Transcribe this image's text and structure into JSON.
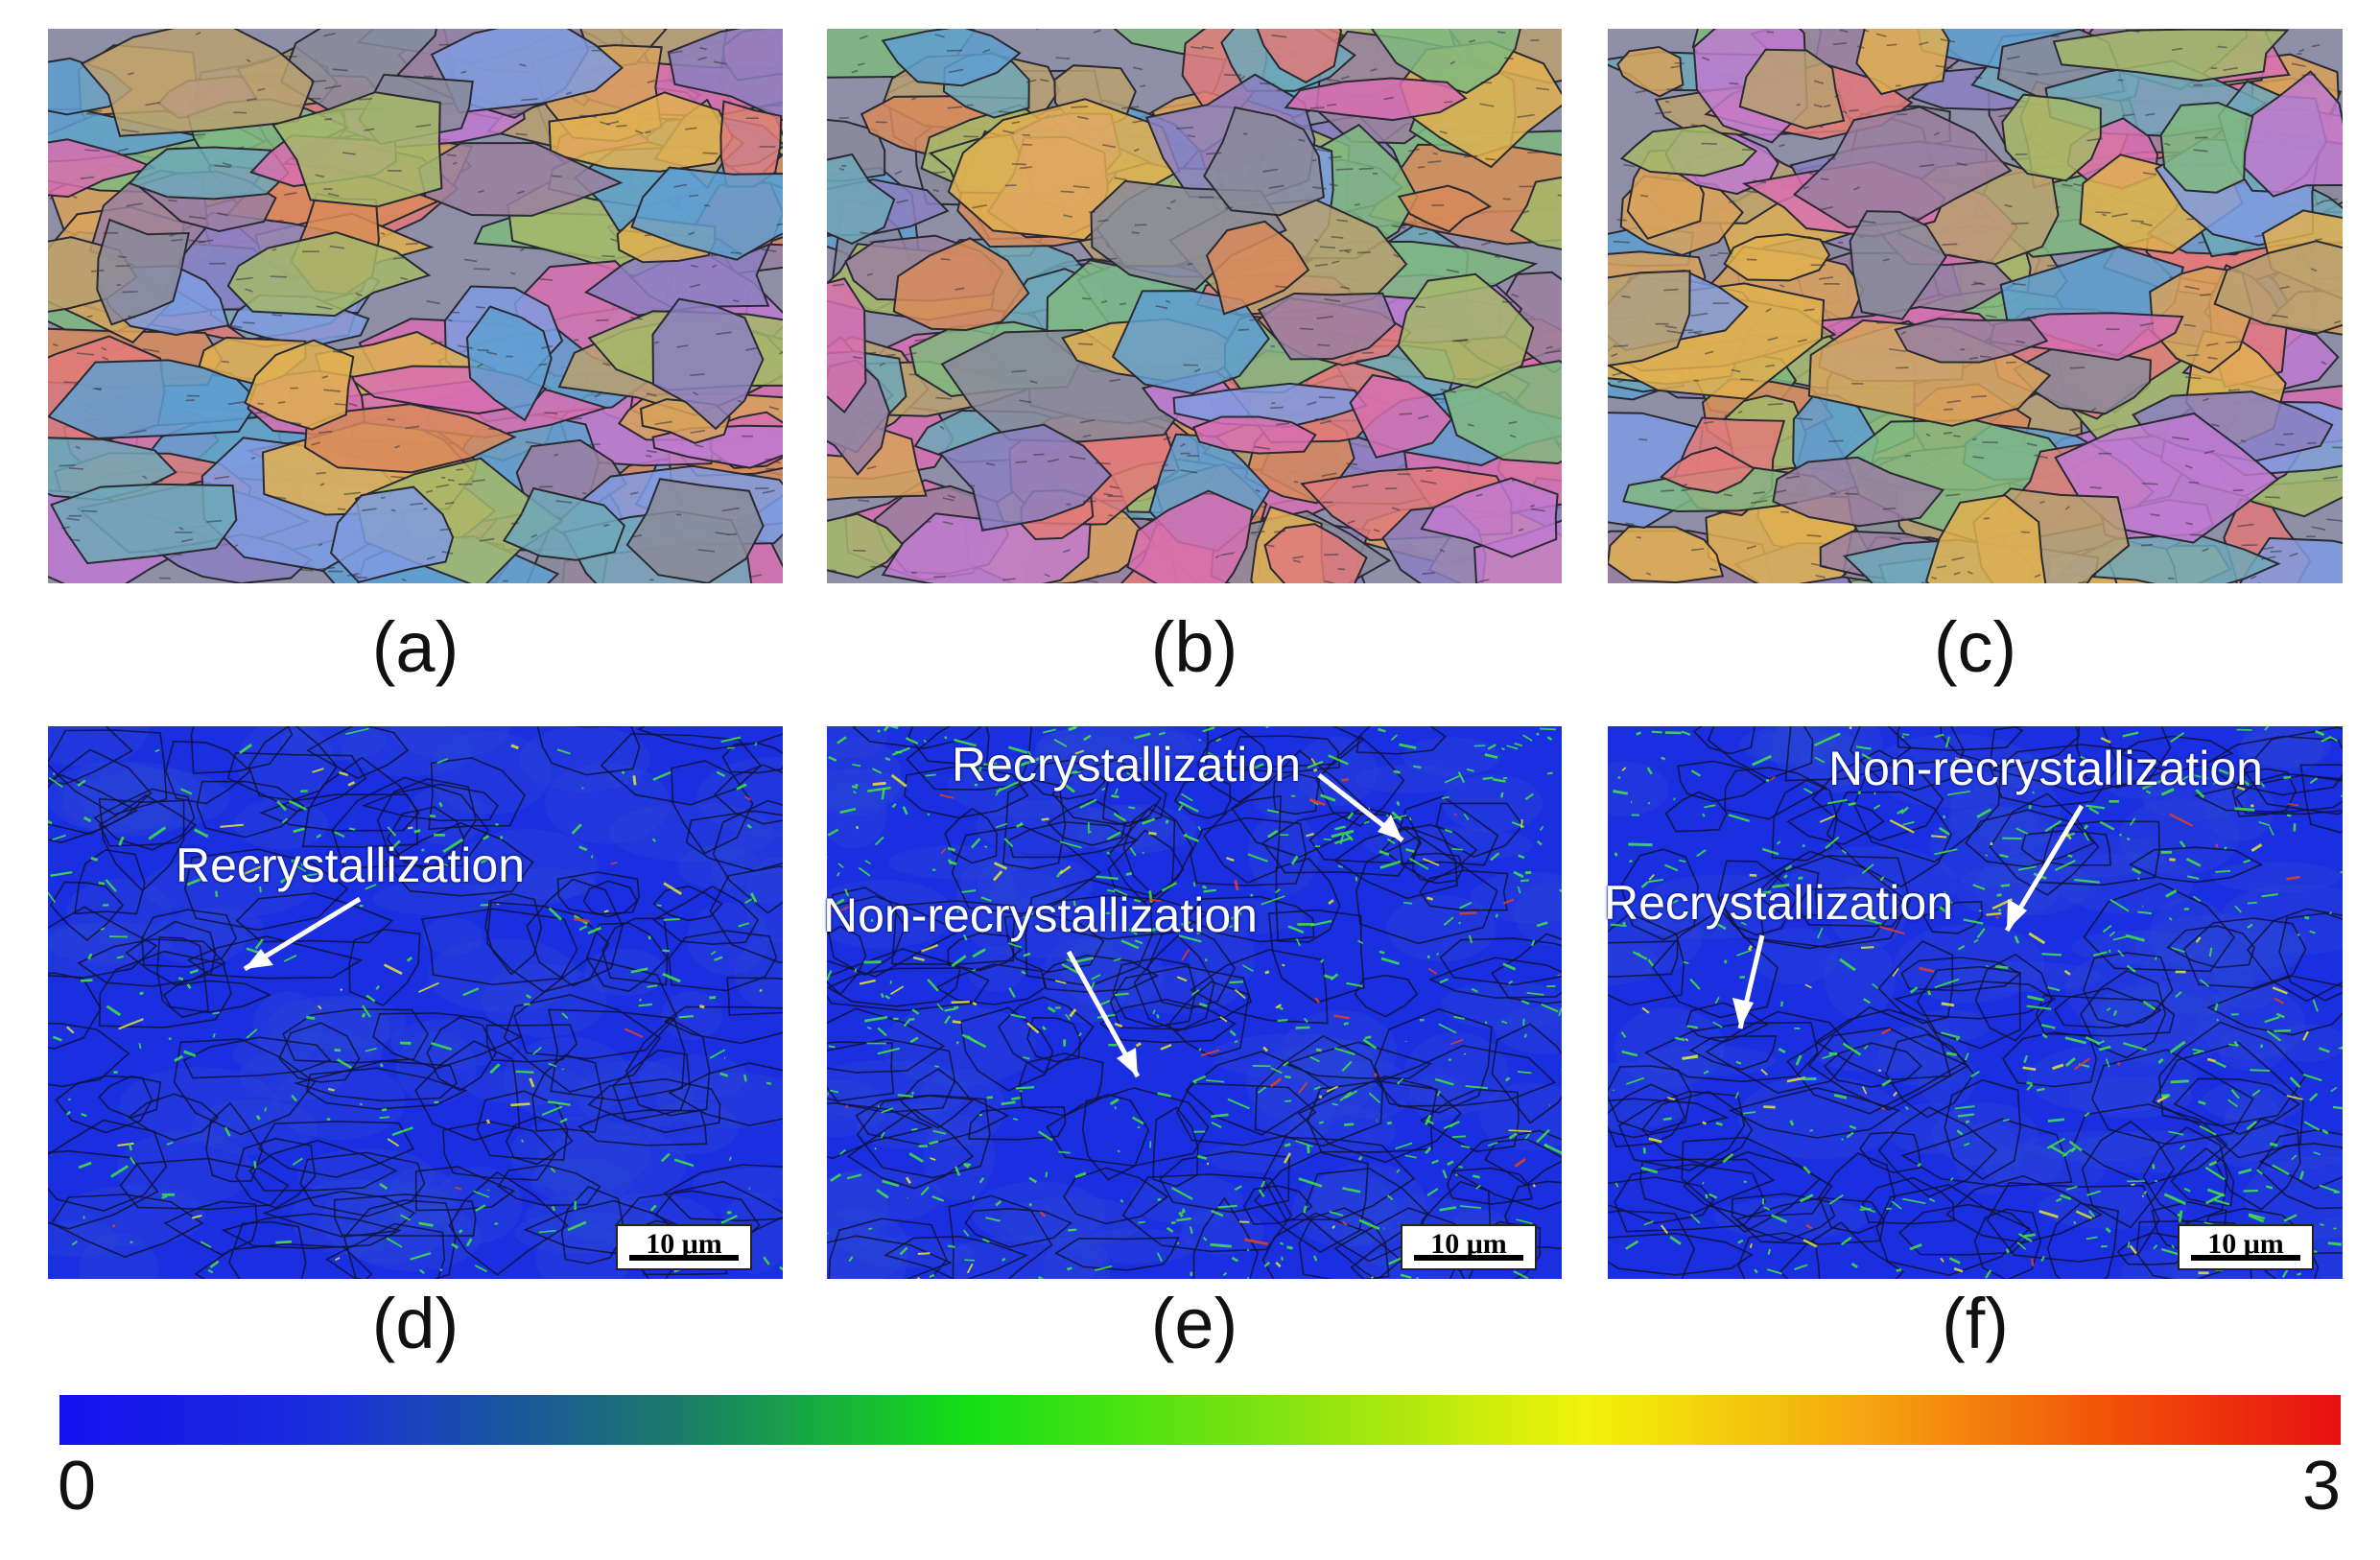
{
  "figure": {
    "panel_labels": [
      "(a)",
      "(b)",
      "(c)",
      "(d)",
      "(e)",
      "(f)"
    ],
    "annotations": {
      "d_recrystallization": "Recrystallization",
      "e_recrystallization": "Recrystallization",
      "e_non_recrystallization": "Non-recrystallization",
      "f_non_recrystallization": "Non-recrystallization",
      "f_recrystallization": "Recrystallization"
    },
    "scale_bar_label": "10 μm",
    "colorbar": {
      "min_label": "0",
      "max_label": "3"
    }
  },
  "colors": {
    "kam_background": "#1a2fe0",
    "kam_highlight": "#3fe83f",
    "grain_palette": [
      "#d86fb0",
      "#7f9be0",
      "#d8a25a",
      "#8b7fbf",
      "#6fa8b8",
      "#d88a5a",
      "#a4b86a",
      "#9a7fa0",
      "#e07a7a",
      "#5f9fd0",
      "#b8a070",
      "#7fb87f",
      "#c07ad0",
      "#8a8a9a",
      "#e0b050"
    ]
  },
  "icons": [
    "arrow-icon"
  ]
}
